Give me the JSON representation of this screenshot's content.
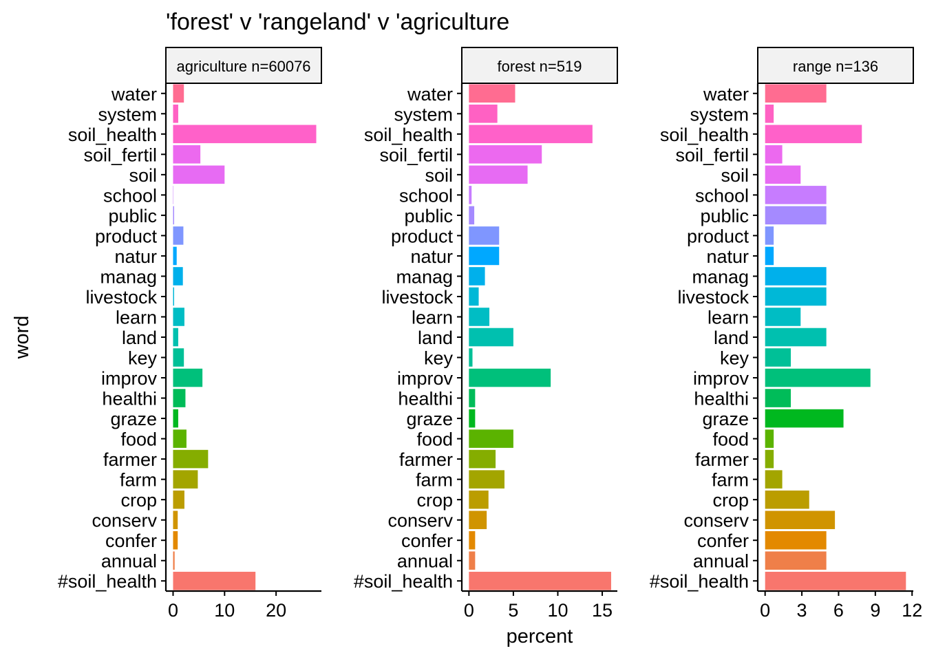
{
  "chart_data": {
    "type": "bar",
    "orientation": "horizontal",
    "title": "'forest' v 'rangeland' v 'agriculture",
    "xlabel": "percent",
    "ylabel": "word",
    "grid": false,
    "legend": "none",
    "categories": [
      "#soil_health",
      "annual",
      "confer",
      "conserv",
      "crop",
      "farm",
      "farmer",
      "food",
      "graze",
      "healthi",
      "improv",
      "key",
      "land",
      "learn",
      "livestock",
      "manag",
      "natur",
      "product",
      "public",
      "school",
      "soil",
      "soil_fertil",
      "soil_health",
      "system",
      "water"
    ],
    "colors": [
      "#F8766D",
      "#EF7F49",
      "#E38900",
      "#D09400",
      "#BB9D00",
      "#A3A500",
      "#85AD00",
      "#5BB300",
      "#00B81F",
      "#00BC59",
      "#00C07B",
      "#00C097",
      "#00C0AF",
      "#00BDC4",
      "#00B8D7",
      "#00B0EB",
      "#00A8FF",
      "#7F96FF",
      "#A58AFF",
      "#C77CFF",
      "#E76BF3",
      "#EC69EF",
      "#FF61C9",
      "#FF61C3",
      "#FF6C91"
    ],
    "panels": [
      {
        "strip": "agriculture n=60076",
        "xlim": [
          -1.4,
          28.8
        ],
        "ticks": [
          0,
          10,
          20
        ],
        "values": [
          16.0,
          0.3,
          0.9,
          0.9,
          2.2,
          4.8,
          6.8,
          2.6,
          1.0,
          2.4,
          5.7,
          2.1,
          1.0,
          2.2,
          0.2,
          1.9,
          0.7,
          2.0,
          0.2,
          0.05,
          10.0,
          5.3,
          27.8,
          1.0,
          2.1
        ]
      },
      {
        "strip": "forest n=519",
        "xlim": [
          -0.8,
          16.7
        ],
        "ticks": [
          0,
          5,
          10,
          15
        ],
        "values": [
          16.0,
          0.7,
          0.7,
          2.0,
          2.2,
          4.0,
          3.0,
          5.0,
          0.7,
          0.7,
          9.2,
          0.4,
          5.0,
          2.3,
          1.1,
          1.8,
          3.4,
          3.4,
          0.6,
          0.3,
          6.6,
          8.2,
          13.9,
          3.2,
          5.2
        ]
      },
      {
        "strip": "range n=136",
        "xlim": [
          -0.6,
          12.1
        ],
        "ticks": [
          0,
          3,
          6,
          9,
          12
        ],
        "tick_labels": [
          "0",
          "3",
          "6",
          "9",
          "12"
        ],
        "values": [
          11.5,
          5.0,
          5.0,
          5.7,
          3.6,
          1.4,
          0.7,
          0.7,
          6.4,
          2.1,
          8.6,
          2.1,
          5.0,
          2.9,
          5.0,
          5.0,
          0.7,
          0.7,
          5.0,
          5.0,
          2.9,
          1.4,
          7.9,
          0.7,
          5.0
        ]
      }
    ]
  }
}
